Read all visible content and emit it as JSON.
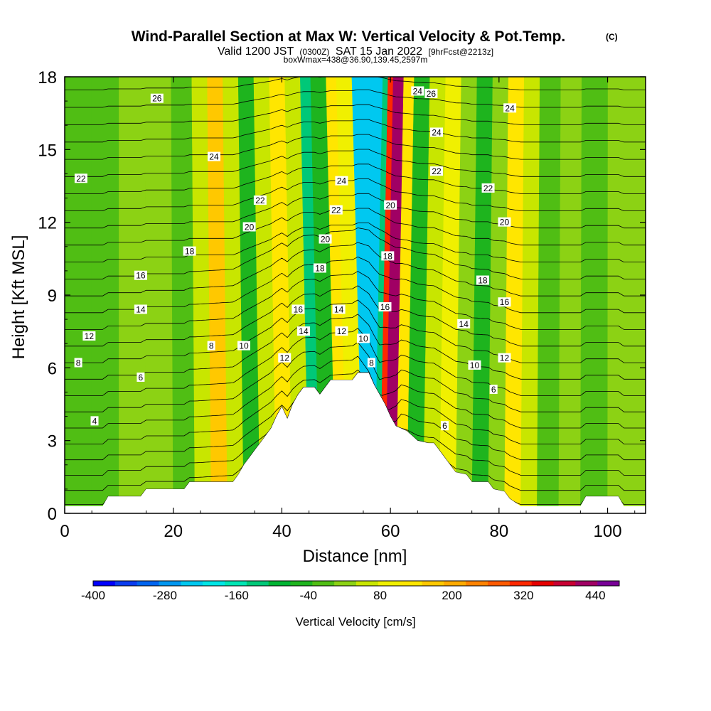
{
  "title": {
    "main": "Wind-Parallel Section at Max W: Vertical Velocity & Pot.Temp.",
    "copyright": "(C)",
    "valid_prefix": "Valid 1200 JST",
    "valid_utc": "(0300Z)",
    "valid_date": "SAT 15 Jan 2022",
    "forecast": "[9hrFcst@2213z]",
    "box_wmax": "boxWmax=438@36.90,139.45,2597m"
  },
  "chart_data": {
    "type": "heatmap",
    "xlabel": "Distance [nm]",
    "ylabel": "Height [Kft MSL]",
    "xlim": [
      0,
      107
    ],
    "ylim": [
      0,
      18
    ],
    "x_ticks": [
      "0",
      "20",
      "40",
      "60",
      "80",
      "100"
    ],
    "y_ticks": [
      "0",
      "3",
      "6",
      "9",
      "12",
      "15",
      "18"
    ],
    "colorbar": {
      "label": "Vertical Velocity [cm/s]",
      "ticks": [
        "-400",
        "-280",
        "-160",
        "-40",
        "80",
        "200",
        "320",
        "440"
      ],
      "min": -400,
      "max": 480,
      "colors": [
        "#0000ff",
        "#0a3cf0",
        "#0064f0",
        "#0096f0",
        "#00c8f0",
        "#00e6e6",
        "#00e6b4",
        "#00c878",
        "#00b432",
        "#1eb41e",
        "#50be14",
        "#8cd214",
        "#c8e600",
        "#f0f000",
        "#ffe600",
        "#ffc800",
        "#ffaa00",
        "#ff8200",
        "#ff5a00",
        "#ff2800",
        "#e60000",
        "#c80032",
        "#a00064",
        "#780096"
      ]
    },
    "terrain": [
      [
        0,
        0.3
      ],
      [
        5,
        0.3
      ],
      [
        6,
        0.3
      ],
      [
        7,
        0.3
      ],
      [
        8,
        0.7
      ],
      [
        14,
        0.7
      ],
      [
        15,
        1.0
      ],
      [
        22,
        1.0
      ],
      [
        23,
        1.3
      ],
      [
        31,
        1.3
      ],
      [
        32,
        1.6
      ],
      [
        33,
        2.0
      ],
      [
        34,
        2.3
      ],
      [
        35,
        2.6
      ],
      [
        36,
        2.9
      ],
      [
        37,
        3.2
      ],
      [
        38,
        3.5
      ],
      [
        39,
        4.0
      ],
      [
        40,
        4.4
      ],
      [
        41,
        3.9
      ],
      [
        42,
        4.5
      ],
      [
        43,
        4.9
      ],
      [
        44,
        5.2
      ],
      [
        46,
        5.2
      ],
      [
        47,
        4.9
      ],
      [
        48,
        5.2
      ],
      [
        49,
        5.5
      ],
      [
        53,
        5.5
      ],
      [
        54,
        5.8
      ],
      [
        56,
        5.8
      ],
      [
        57,
        5.3
      ],
      [
        58,
        4.9
      ],
      [
        59,
        4.5
      ],
      [
        60,
        4.0
      ],
      [
        61,
        3.6
      ],
      [
        62,
        3.5
      ],
      [
        63,
        3.4
      ],
      [
        64,
        3.2
      ],
      [
        65,
        3.0
      ],
      [
        67,
        2.9
      ],
      [
        68,
        2.9
      ],
      [
        69,
        2.6
      ],
      [
        70,
        2.3
      ],
      [
        71,
        2.0
      ],
      [
        72,
        1.7
      ],
      [
        74,
        1.6
      ],
      [
        75,
        1.3
      ],
      [
        78,
        1.3
      ],
      [
        79,
        1.0
      ],
      [
        81,
        0.9
      ],
      [
        82,
        0.6
      ],
      [
        84,
        0.3
      ],
      [
        95,
        0.3
      ],
      [
        96,
        0.7
      ],
      [
        102,
        0.7
      ],
      [
        103,
        0.3
      ],
      [
        107,
        0.3
      ]
    ],
    "w_bands": [
      {
        "x": 0,
        "w": -20
      },
      {
        "x": 5,
        "w": -25
      },
      {
        "x": 10,
        "w": 20
      },
      {
        "x": 15,
        "w": 10
      },
      {
        "x": 20,
        "w": -10
      },
      {
        "x": 24,
        "w": 60
      },
      {
        "x": 27,
        "w": 150
      },
      {
        "x": 30,
        "w": 60
      },
      {
        "x": 33,
        "w": -40
      },
      {
        "x": 36,
        "w": 40
      },
      {
        "x": 39,
        "w": 120
      },
      {
        "x": 42,
        "w": 60
      },
      {
        "x": 45,
        "w": -120
      },
      {
        "x": 47,
        "w": -60
      },
      {
        "x": 50,
        "w": 120
      },
      {
        "x": 52,
        "w": 80
      },
      {
        "x": 55,
        "w": -220
      },
      {
        "x": 57,
        "w": -120
      },
      {
        "x": 58,
        "w": 330
      },
      {
        "x": 59,
        "w": 440
      },
      {
        "x": 61,
        "w": 130
      },
      {
        "x": 63,
        "w": -60
      },
      {
        "x": 66,
        "w": 40
      },
      {
        "x": 69,
        "w": 100
      },
      {
        "x": 72,
        "w": 20
      },
      {
        "x": 75,
        "w": -50
      },
      {
        "x": 78,
        "w": 30
      },
      {
        "x": 81,
        "w": 130
      },
      {
        "x": 84,
        "w": 60
      },
      {
        "x": 87,
        "w": -20
      },
      {
        "x": 91,
        "w": 10
      },
      {
        "x": 95,
        "w": -25
      },
      {
        "x": 100,
        "w": 20
      },
      {
        "x": 107,
        "w": 0
      }
    ],
    "theta_levels": [
      4,
      6,
      8,
      10,
      12,
      14,
      16,
      18,
      20,
      22,
      24,
      26,
      28
    ],
    "contour_labels": [
      {
        "text": "26",
        "x": 17,
        "y": 17.1
      },
      {
        "text": "24",
        "x": 65,
        "y": 17.4
      },
      {
        "text": "26",
        "x": 67.5,
        "y": 17.3
      },
      {
        "text": "24",
        "x": 82,
        "y": 16.7
      },
      {
        "text": "24",
        "x": 27.5,
        "y": 14.7
      },
      {
        "text": "22",
        "x": 3,
        "y": 13.8
      },
      {
        "text": "24",
        "x": 51,
        "y": 13.7
      },
      {
        "text": "22",
        "x": 68.5,
        "y": 14.1
      },
      {
        "text": "24",
        "x": 68.5,
        "y": 15.7
      },
      {
        "text": "22",
        "x": 78,
        "y": 13.4
      },
      {
        "text": "22",
        "x": 36,
        "y": 12.9
      },
      {
        "text": "22",
        "x": 50,
        "y": 12.5
      },
      {
        "text": "20",
        "x": 60,
        "y": 12.7
      },
      {
        "text": "20",
        "x": 34,
        "y": 11.8
      },
      {
        "text": "20",
        "x": 81,
        "y": 12.0
      },
      {
        "text": "20",
        "x": 48,
        "y": 11.3
      },
      {
        "text": "18",
        "x": 23,
        "y": 10.8
      },
      {
        "text": "18",
        "x": 59.5,
        "y": 10.6
      },
      {
        "text": "18",
        "x": 47,
        "y": 10.1
      },
      {
        "text": "16",
        "x": 14,
        "y": 9.8
      },
      {
        "text": "18",
        "x": 77,
        "y": 9.6
      },
      {
        "text": "16",
        "x": 81,
        "y": 8.7
      },
      {
        "text": "14",
        "x": 14,
        "y": 8.4
      },
      {
        "text": "16",
        "x": 43,
        "y": 8.4
      },
      {
        "text": "14",
        "x": 50.5,
        "y": 8.4
      },
      {
        "text": "16",
        "x": 59,
        "y": 8.5
      },
      {
        "text": "14",
        "x": 73.5,
        "y": 7.8
      },
      {
        "text": "12",
        "x": 4.5,
        "y": 7.3
      },
      {
        "text": "14",
        "x": 44,
        "y": 7.5
      },
      {
        "text": "12",
        "x": 51,
        "y": 7.5
      },
      {
        "text": "8",
        "x": 27,
        "y": 6.9
      },
      {
        "text": "10",
        "x": 33,
        "y": 6.9
      },
      {
        "text": "10",
        "x": 55,
        "y": 7.2
      },
      {
        "text": "12",
        "x": 40.5,
        "y": 6.4
      },
      {
        "text": "12",
        "x": 81,
        "y": 6.4
      },
      {
        "text": "8",
        "x": 2.5,
        "y": 6.2
      },
      {
        "text": "8",
        "x": 56.5,
        "y": 6.2
      },
      {
        "text": "10",
        "x": 75.5,
        "y": 6.1
      },
      {
        "text": "6",
        "x": 14,
        "y": 5.6
      },
      {
        "text": "6",
        "x": 79,
        "y": 5.1
      },
      {
        "text": "4",
        "x": 5.5,
        "y": 3.8
      },
      {
        "text": "6",
        "x": 70,
        "y": 3.6
      }
    ]
  }
}
